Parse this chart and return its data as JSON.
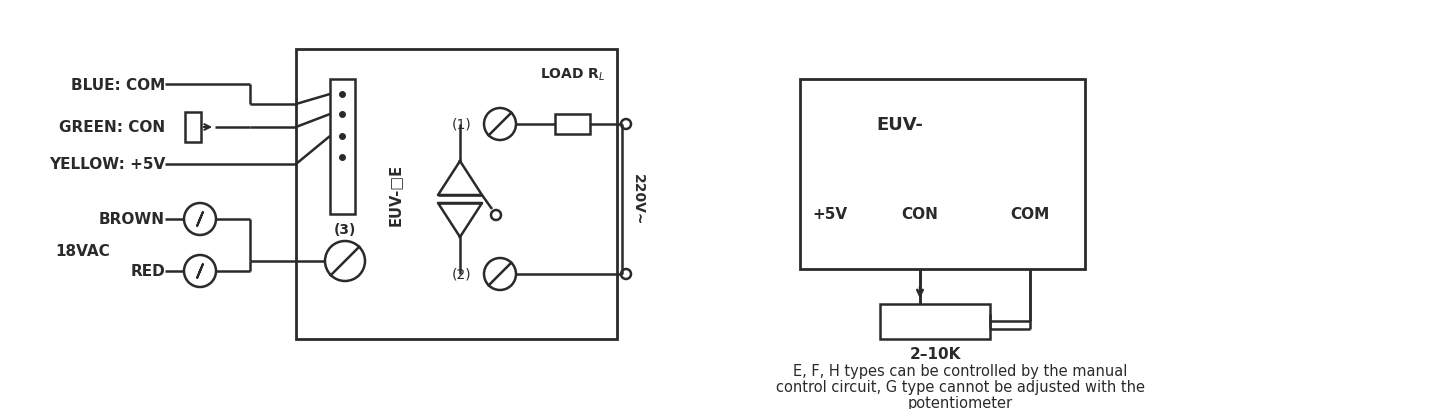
{
  "bg_color": "#ffffff",
  "line_color": "#2a2a2a",
  "fig_width": 14.54,
  "fig_height": 4.1,
  "dpi": 100,
  "caption_line1": "E, F, H types can be controlled by the manual",
  "caption_line2": "control circuit, G type cannot be adjusted with the",
  "caption_line3": "potentiometer",
  "font_size": 11
}
